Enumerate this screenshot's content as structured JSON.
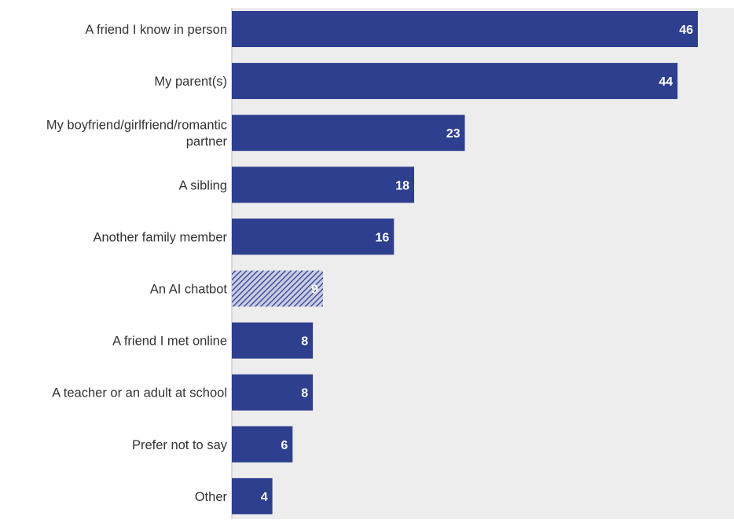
{
  "chart_data": {
    "type": "bar",
    "orientation": "horizontal",
    "categories": [
      "A friend I know in person",
      "My parent(s)",
      "My boyfriend/girlfriend/romantic partner",
      "A sibling",
      "Another family member",
      "An AI chatbot",
      "A friend I met online",
      "A teacher or an adult at school",
      "Prefer not to say",
      "Other"
    ],
    "category_lines": [
      [
        "A friend I know in person"
      ],
      [
        "My parent(s)"
      ],
      [
        "My boyfriend/girlfriend/romantic",
        "partner"
      ],
      [
        "A sibling"
      ],
      [
        "Another family member"
      ],
      [
        "An AI chatbot"
      ],
      [
        "A friend I met online"
      ],
      [
        "A teacher or an adult at school"
      ],
      [
        "Prefer not to say"
      ],
      [
        "Other"
      ]
    ],
    "values": [
      46,
      44,
      23,
      18,
      16,
      9,
      8,
      8,
      6,
      4
    ],
    "data_labels": [
      "46",
      "44",
      "23",
      "18",
      "16",
      "9",
      "8",
      "8",
      "6",
      "4"
    ],
    "highlighted_category": "An AI chatbot",
    "title": "",
    "xlabel": "",
    "ylabel": "",
    "xlim": [
      0,
      50
    ],
    "grid": false,
    "legend": "none",
    "colors": {
      "bar": "#2e3f8f",
      "highlight_stripe": "#2e3f8f",
      "highlight_bg": "#c9cde4",
      "plot_background": "#ededed",
      "label_text": "#333333",
      "value_text": "#ffffff",
      "axis_line": "#cfcfcf"
    }
  }
}
